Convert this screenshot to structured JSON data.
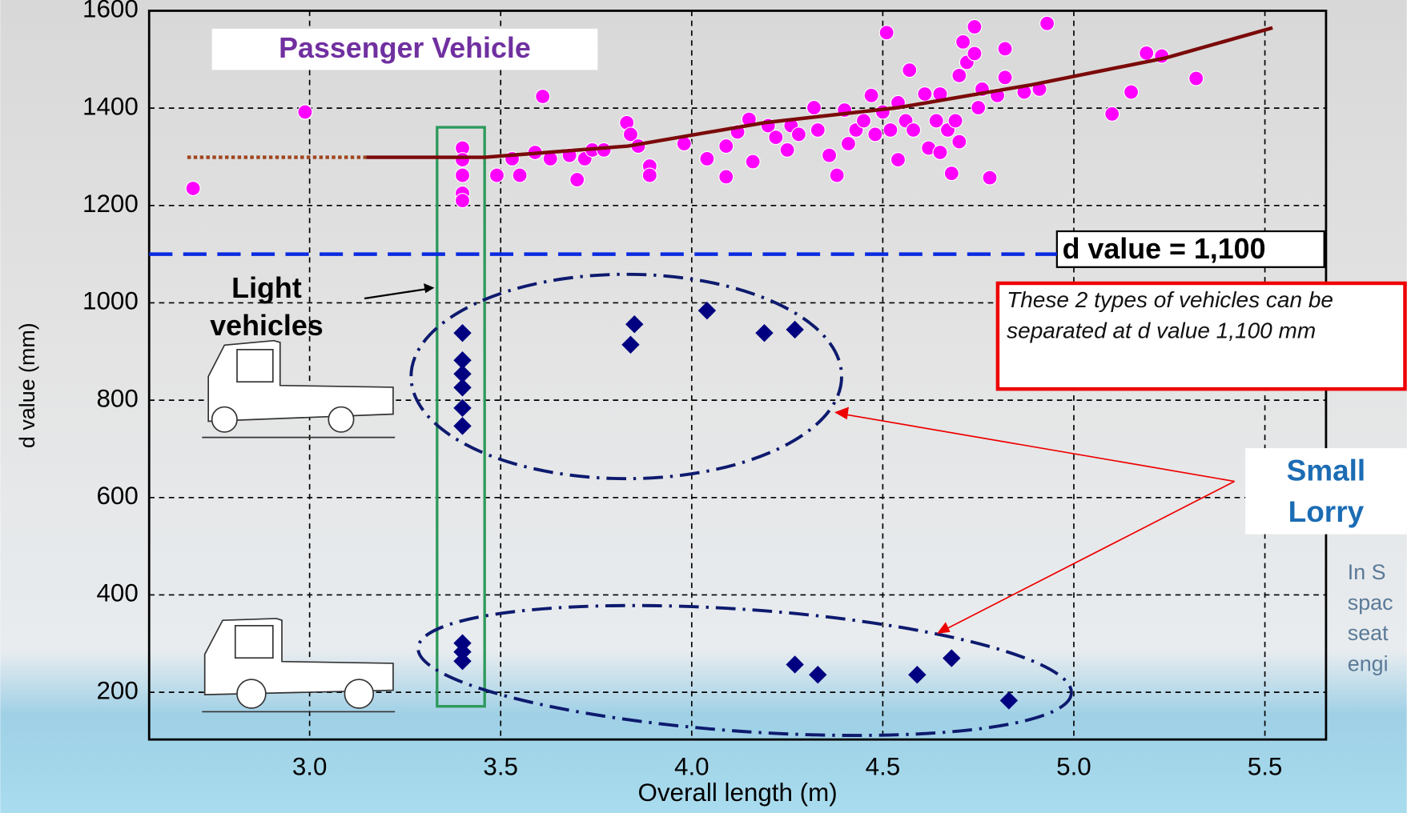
{
  "chart_data": {
    "type": "scatter",
    "xlabel": "Overall length (m)",
    "ylabel": "d value (mm)",
    "xlim": [
      2.58,
      5.66
    ],
    "ylim": [
      103,
      1600
    ],
    "xticks": [
      {
        "value": 3,
        "label": "3.0"
      },
      {
        "value": 3.5,
        "label": "3.5"
      },
      {
        "value": 4,
        "label": "4.0"
      },
      {
        "value": 4.5,
        "label": "4.5"
      },
      {
        "value": 5,
        "label": "5.0"
      },
      {
        "value": 5.5,
        "label": "5.5"
      }
    ],
    "yticks": [
      200,
      400,
      600,
      800,
      1000,
      1200,
      1400,
      1600
    ],
    "grid": true,
    "series": [
      {
        "name": "Passenger Vehicle",
        "color": "#ff00ff",
        "marker": "circle",
        "x": [
          2.695,
          2.988,
          3.4,
          3.4,
          3.4,
          3.4,
          3.4,
          3.49,
          3.55,
          3.53,
          3.61,
          3.59,
          3.63,
          3.68,
          3.7,
          3.72,
          3.74,
          3.77,
          3.83,
          3.84,
          3.86,
          3.89,
          3.89,
          3.98,
          4.04,
          4.09,
          4.09,
          4.12,
          4.15,
          4.16,
          4.2,
          4.22,
          4.25,
          4.26,
          4.28,
          4.32,
          4.33,
          4.36,
          4.38,
          4.4,
          4.41,
          4.43,
          4.45,
          4.47,
          4.48,
          4.5,
          4.51,
          4.52,
          4.54,
          4.54,
          4.56,
          4.57,
          4.58,
          4.61,
          4.62,
          4.64,
          4.65,
          4.65,
          4.67,
          4.68,
          4.69,
          4.7,
          4.7,
          4.71,
          4.72,
          4.74,
          4.74,
          4.75,
          4.76,
          4.78,
          4.8,
          4.82,
          4.82,
          4.87,
          4.91,
          4.93,
          5.1,
          5.15,
          5.19,
          5.23,
          5.32
        ],
        "values": [
          1235,
          1392,
          1318,
          1294,
          1262,
          1225,
          1210,
          1262,
          1262,
          1296,
          1424,
          1309,
          1296,
          1303,
          1253,
          1296,
          1314,
          1314,
          1370,
          1346,
          1322,
          1281,
          1262,
          1327,
          1296,
          1322,
          1259,
          1351,
          1377,
          1290,
          1364,
          1340,
          1314,
          1364,
          1346,
          1401,
          1355,
          1303,
          1262,
          1396,
          1327,
          1355,
          1374,
          1426,
          1346,
          1392,
          1555,
          1355,
          1411,
          1294,
          1374,
          1478,
          1355,
          1429,
          1318,
          1374,
          1309,
          1429,
          1355,
          1266,
          1374,
          1467,
          1331,
          1536,
          1494,
          1567,
          1512,
          1401,
          1439,
          1257,
          1426,
          1522,
          1463,
          1433,
          1439,
          1574,
          1388,
          1433,
          1513,
          1507,
          1461
        ]
      },
      {
        "name": "Small Lorry",
        "color": "#000080",
        "marker": "diamond",
        "x": [
          3.4,
          3.4,
          3.4,
          3.4,
          3.4,
          3.4,
          3.84,
          3.85,
          4.04,
          4.19,
          4.27,
          3.4,
          3.4,
          3.4,
          4.27,
          4.33,
          4.59,
          4.68,
          4.83
        ],
        "values": [
          938,
          882,
          854,
          826,
          784,
          747,
          914,
          956,
          984,
          938,
          945,
          301,
          283,
          264,
          257,
          236,
          236,
          270,
          183
        ]
      }
    ],
    "trend": {
      "color": "#7b0a0a",
      "x": [
        3.148,
        3.458,
        3.833,
        4.19,
        4.54,
        4.89,
        5.24,
        5.52
      ],
      "values": [
        1299,
        1299,
        1322,
        1370,
        1401,
        1448,
        1503,
        1565
      ]
    },
    "trend_extension": {
      "color": "#a0461e",
      "x": [
        2.68,
        3.148
      ],
      "values": [
        1299,
        1299
      ]
    },
    "threshold": 1100,
    "threshold_color": "#0a2be0",
    "threshold_label": "d value = 1,100",
    "annotations": {
      "light_vehicles": "Light vehicles",
      "note": "These 2 types of vehicles can be separated at d value 1,100 mm",
      "side_text": [
        "In S",
        "spac",
        "seat",
        "engi"
      ]
    }
  }
}
